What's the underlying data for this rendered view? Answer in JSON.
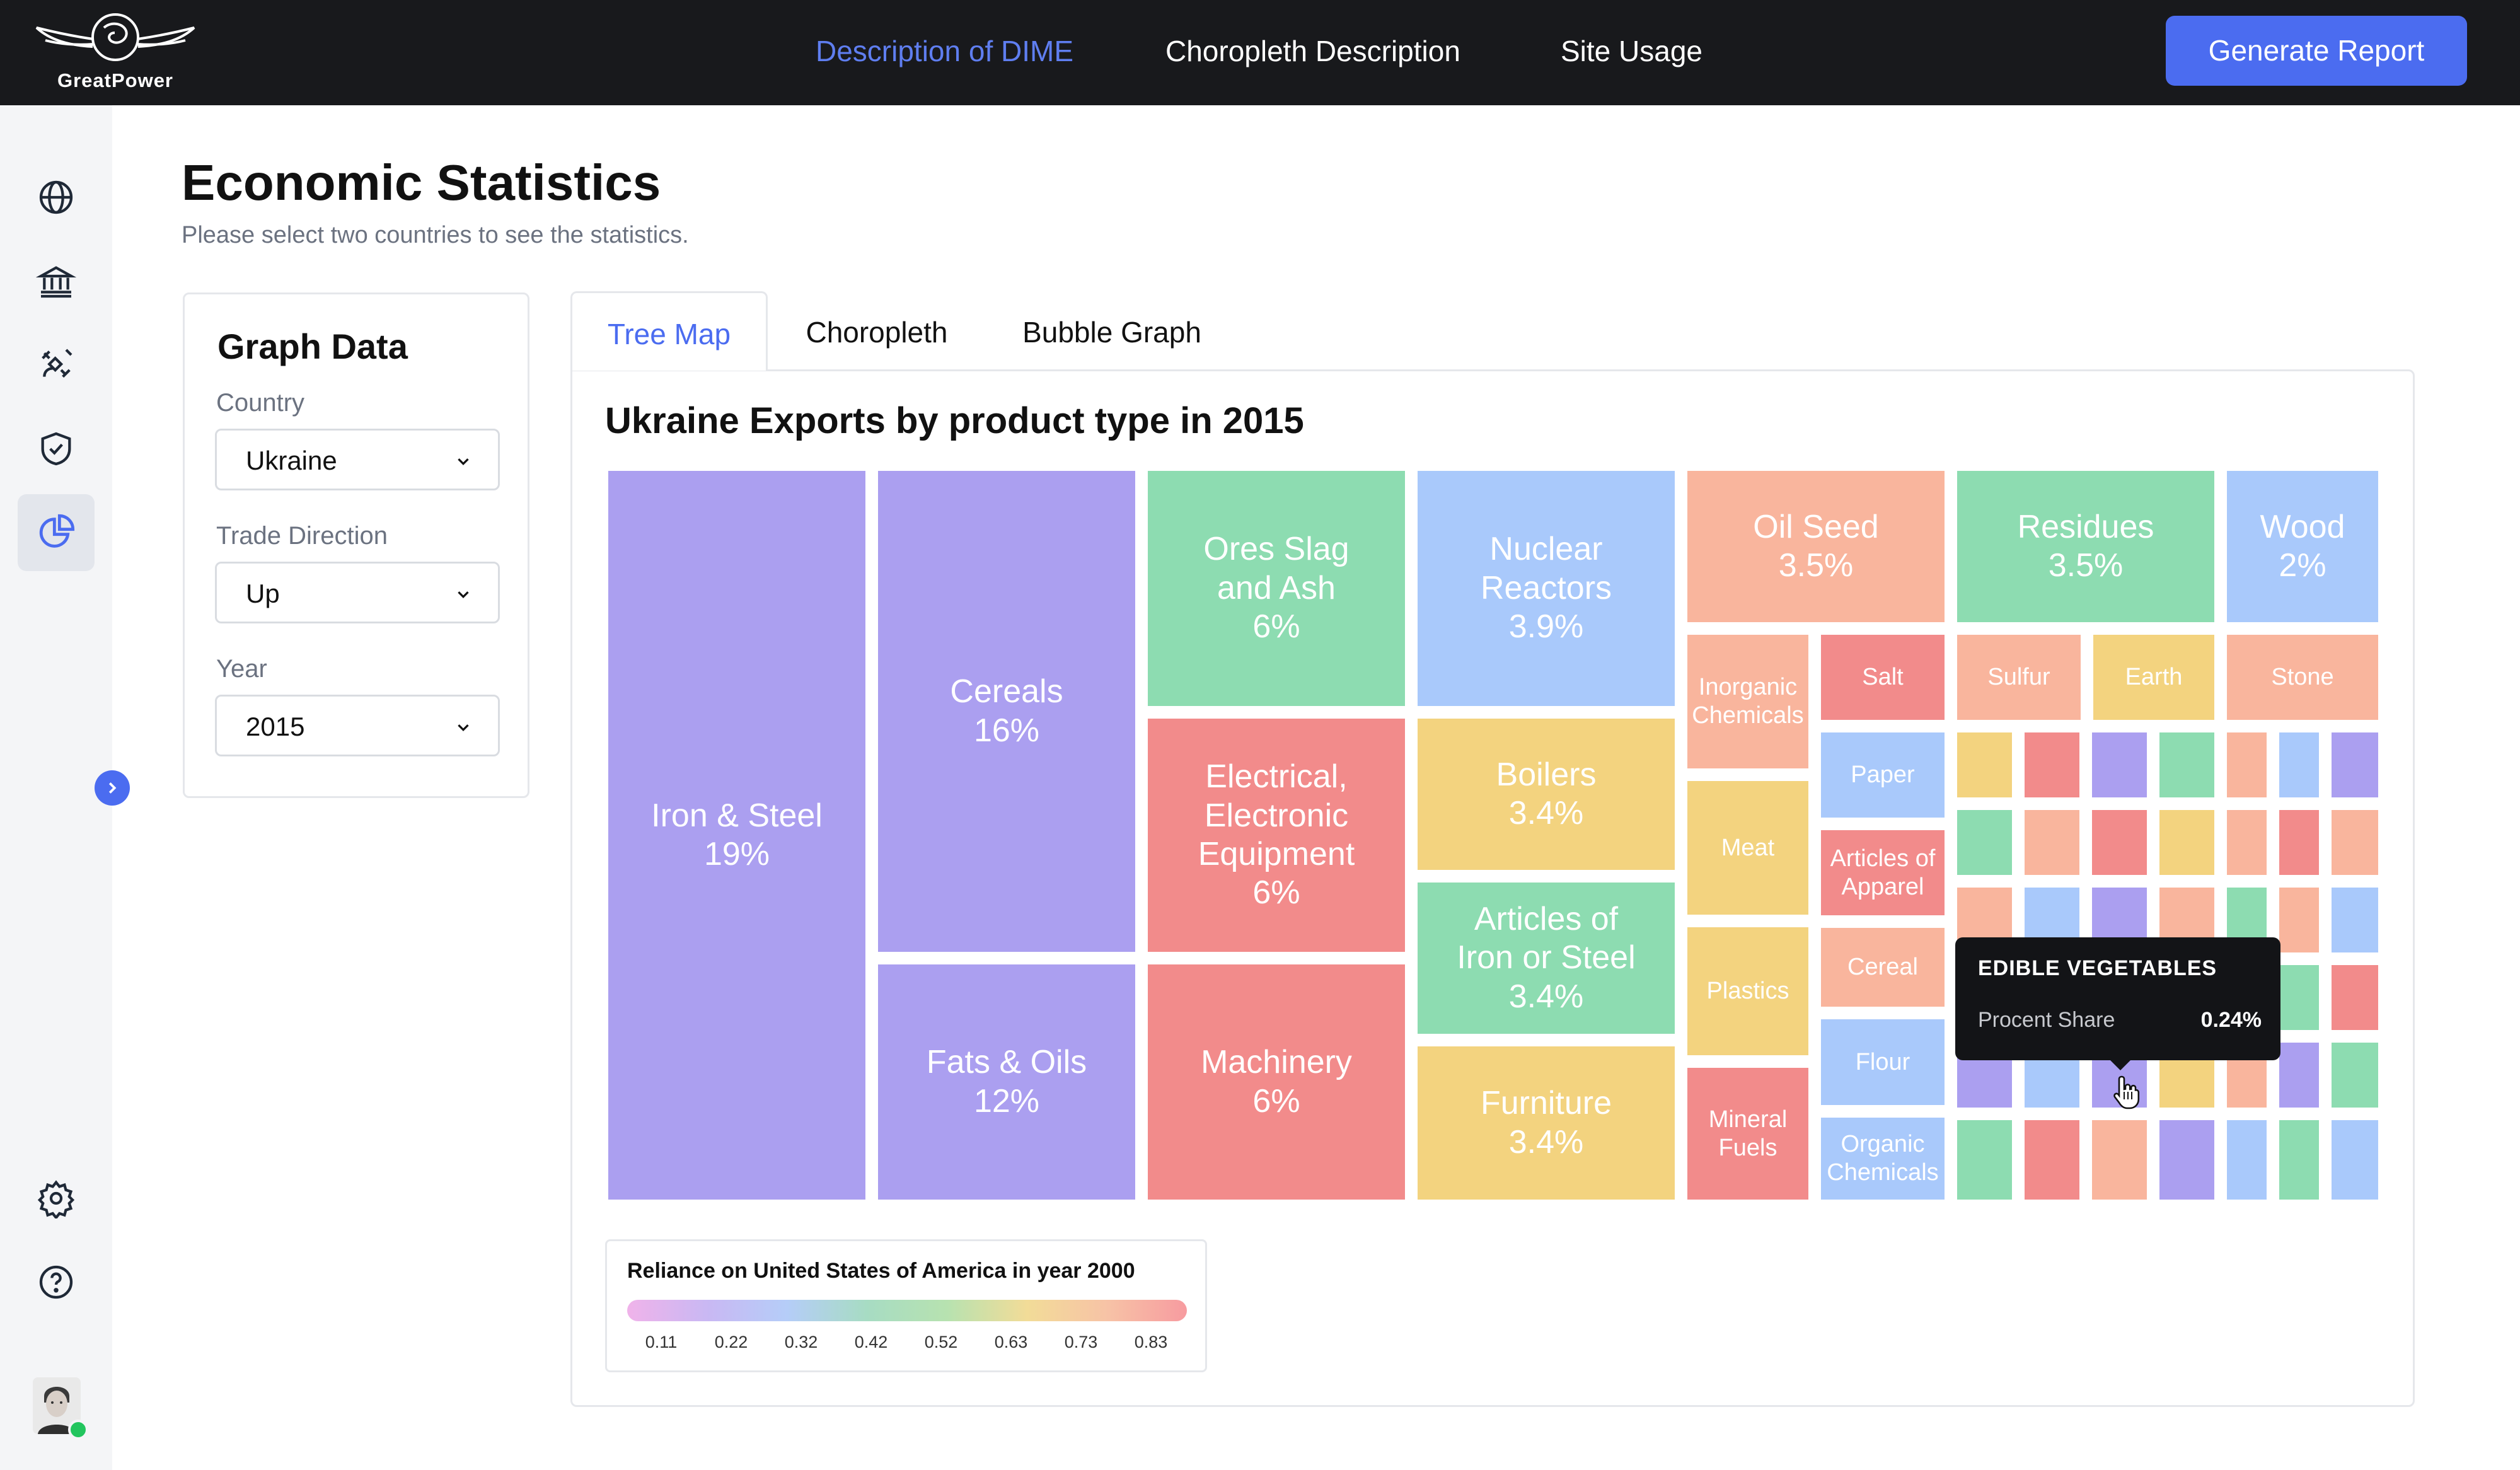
{
  "brand": {
    "name": "GreatPower"
  },
  "nav": {
    "links": [
      "Description of DIME",
      "Choropleth Description",
      "Site Usage"
    ],
    "active_index": 0,
    "report_button": "Generate Report"
  },
  "sidebar": {
    "icons": [
      "globe-icon",
      "bank-icon",
      "satellite-icon",
      "shield-icon",
      "pie-chart-icon"
    ],
    "active_icon": "pie-chart-icon",
    "bottom_icons": [
      "settings-icon",
      "help-icon"
    ]
  },
  "page": {
    "title": "Economic Statistics",
    "subtitle": "Please select two countries to see the statistics."
  },
  "graph_data": {
    "title": "Graph Data",
    "country_label": "Country",
    "country_value": "Ukraine",
    "direction_label": "Trade Direction",
    "direction_value": "Up",
    "year_label": "Year",
    "year_value": "2015"
  },
  "tabs": [
    "Tree Map",
    "Choropleth",
    "Bubble Graph"
  ],
  "active_tab": "Tree Map",
  "chart_data": {
    "type": "treemap",
    "title": "Ukraine Exports by product type in 2015",
    "items": [
      {
        "name": "Iron & Steel",
        "value": "19%"
      },
      {
        "name": "Cereals",
        "value": "16%"
      },
      {
        "name": "Fats & Oils",
        "value": "12%"
      },
      {
        "name": "Ores Slag\nand Ash",
        "value": "6%"
      },
      {
        "name": "Electrical,\nElectronic\nEquipment",
        "value": "6%"
      },
      {
        "name": "Machinery",
        "value": "6%"
      },
      {
        "name": "Nuclear\nReactors",
        "value": "3.9%"
      },
      {
        "name": "Boilers",
        "value": "3.4%"
      },
      {
        "name": "Articles of\nIron or Steel",
        "value": "3.4%"
      },
      {
        "name": "Furniture",
        "value": "3.4%"
      },
      {
        "name": "Oil Seed",
        "value": "3.5%"
      },
      {
        "name": "Residues",
        "value": "3.5%"
      },
      {
        "name": "Wood",
        "value": "2%"
      },
      {
        "name": "Inorganic\nChemicals",
        "value": ""
      },
      {
        "name": "Salt",
        "value": ""
      },
      {
        "name": "Sulfur",
        "value": ""
      },
      {
        "name": "Earth",
        "value": ""
      },
      {
        "name": "Stone",
        "value": ""
      },
      {
        "name": "Paper",
        "value": ""
      },
      {
        "name": "Meat",
        "value": ""
      },
      {
        "name": "Articles of\nApparel",
        "value": ""
      },
      {
        "name": "Cereal",
        "value": ""
      },
      {
        "name": "Plastics",
        "value": ""
      },
      {
        "name": "Flour",
        "value": ""
      },
      {
        "name": "Mineral\nFuels",
        "value": ""
      },
      {
        "name": "Organic\nChemicals",
        "value": ""
      }
    ],
    "palette": {
      "purple": "#ab9ff0",
      "green": "#8ddcb1",
      "blue": "#a9c9fb",
      "red": "#f28b8b",
      "yellow": "#f3d37f",
      "salmon": "#f9b59d"
    },
    "tooltip": {
      "title": "EDIBLE VEGETABLES",
      "label": "Procent Share",
      "value": "0.24%"
    },
    "legend": {
      "title": "Reliance on United States of America in year 2000",
      "ticks": [
        "0.11",
        "0.22",
        "0.32",
        "0.42",
        "0.52",
        "0.63",
        "0.73",
        "0.83"
      ]
    }
  }
}
